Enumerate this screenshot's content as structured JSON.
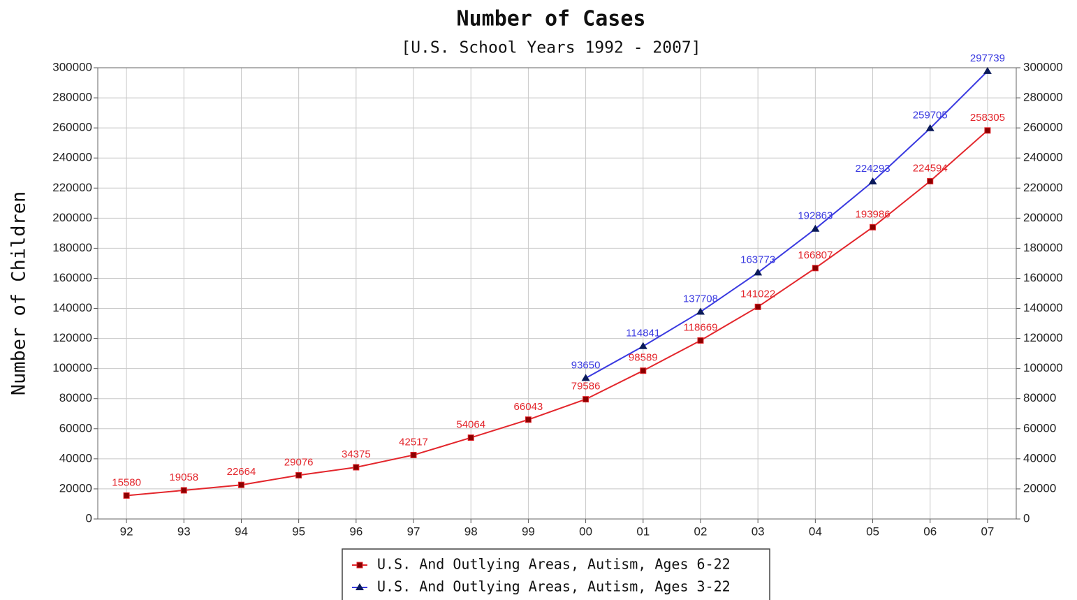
{
  "chart_data": {
    "type": "line",
    "title": "Number of Cases",
    "subtitle": "[U.S. School Years 1992 - 2007]",
    "y_label": "Number of Children",
    "categories": [
      "92",
      "93",
      "94",
      "95",
      "96",
      "97",
      "98",
      "99",
      "00",
      "01",
      "02",
      "03",
      "04",
      "05",
      "06",
      "07"
    ],
    "series": [
      {
        "name": "U.S. And Outlying Areas, Autism, Ages 6-22",
        "color": "#e3262c",
        "marker_color": "#8b0000",
        "marker": "square",
        "values": [
          15580,
          19058,
          22664,
          29076,
          34375,
          42517,
          54064,
          66043,
          79586,
          98589,
          118669,
          141022,
          166807,
          193986,
          224594,
          258305
        ]
      },
      {
        "name": "U.S. And Outlying Areas, Autism, Ages 3-22",
        "color": "#3a3ae0",
        "marker_color": "#0a1a5a",
        "marker": "triangle",
        "values": [
          null,
          null,
          null,
          null,
          null,
          null,
          null,
          null,
          93650,
          114841,
          137708,
          163773,
          192863,
          224293,
          259705,
          297739
        ]
      }
    ],
    "ylim": [
      0,
      300000
    ],
    "yticks": [
      0,
      20000,
      40000,
      60000,
      80000,
      100000,
      120000,
      140000,
      160000,
      180000,
      200000,
      220000,
      240000,
      260000,
      280000,
      300000
    ],
    "y2lim": [
      0,
      300000
    ],
    "y2ticks": [
      0,
      20000,
      40000,
      60000,
      80000,
      100000,
      120000,
      140000,
      160000,
      180000,
      200000,
      220000,
      240000,
      260000,
      280000,
      300000
    ],
    "grid": true,
    "legend": "bottom"
  }
}
